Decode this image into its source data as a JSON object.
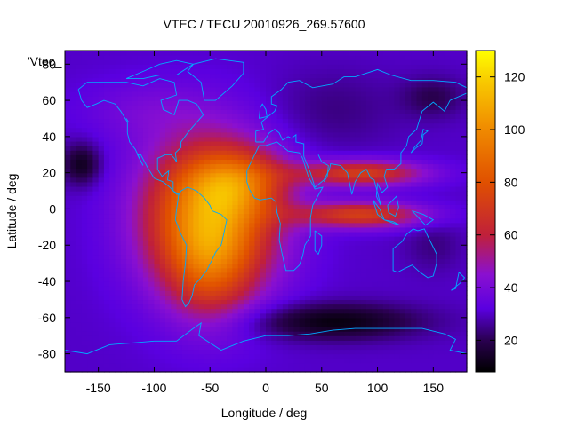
{
  "chart_data": {
    "type": "heatmap",
    "title": "VTEC / TECU 20010926_269.57600",
    "xlabel": "Longitude / deg",
    "ylabel": "Latitude / deg",
    "series_key": "'Vtec_",
    "xlim": [
      -180,
      180
    ],
    "ylim": [
      -90,
      87.5
    ],
    "xticks": [
      -150,
      -100,
      -50,
      0,
      50,
      100,
      150
    ],
    "yticks": [
      -80,
      -60,
      -40,
      -20,
      0,
      20,
      40,
      60,
      80
    ],
    "colorbar": {
      "range": [
        8,
        130
      ],
      "ticks": [
        20,
        40,
        60,
        80,
        100,
        120
      ],
      "stops": [
        {
          "v": 8,
          "color": "#000000"
        },
        {
          "v": 20,
          "color": "#2a0050"
        },
        {
          "v": 32,
          "color": "#5a00e0"
        },
        {
          "v": 45,
          "color": "#8a10d0"
        },
        {
          "v": 60,
          "color": "#c0203a"
        },
        {
          "v": 80,
          "color": "#e05000"
        },
        {
          "v": 100,
          "color": "#f08a00"
        },
        {
          "v": 118,
          "color": "#f8c800"
        },
        {
          "v": 130,
          "color": "#ffff00"
        }
      ]
    },
    "grid": false,
    "legend": "top-left",
    "coastline_color": "#00aaff"
  }
}
